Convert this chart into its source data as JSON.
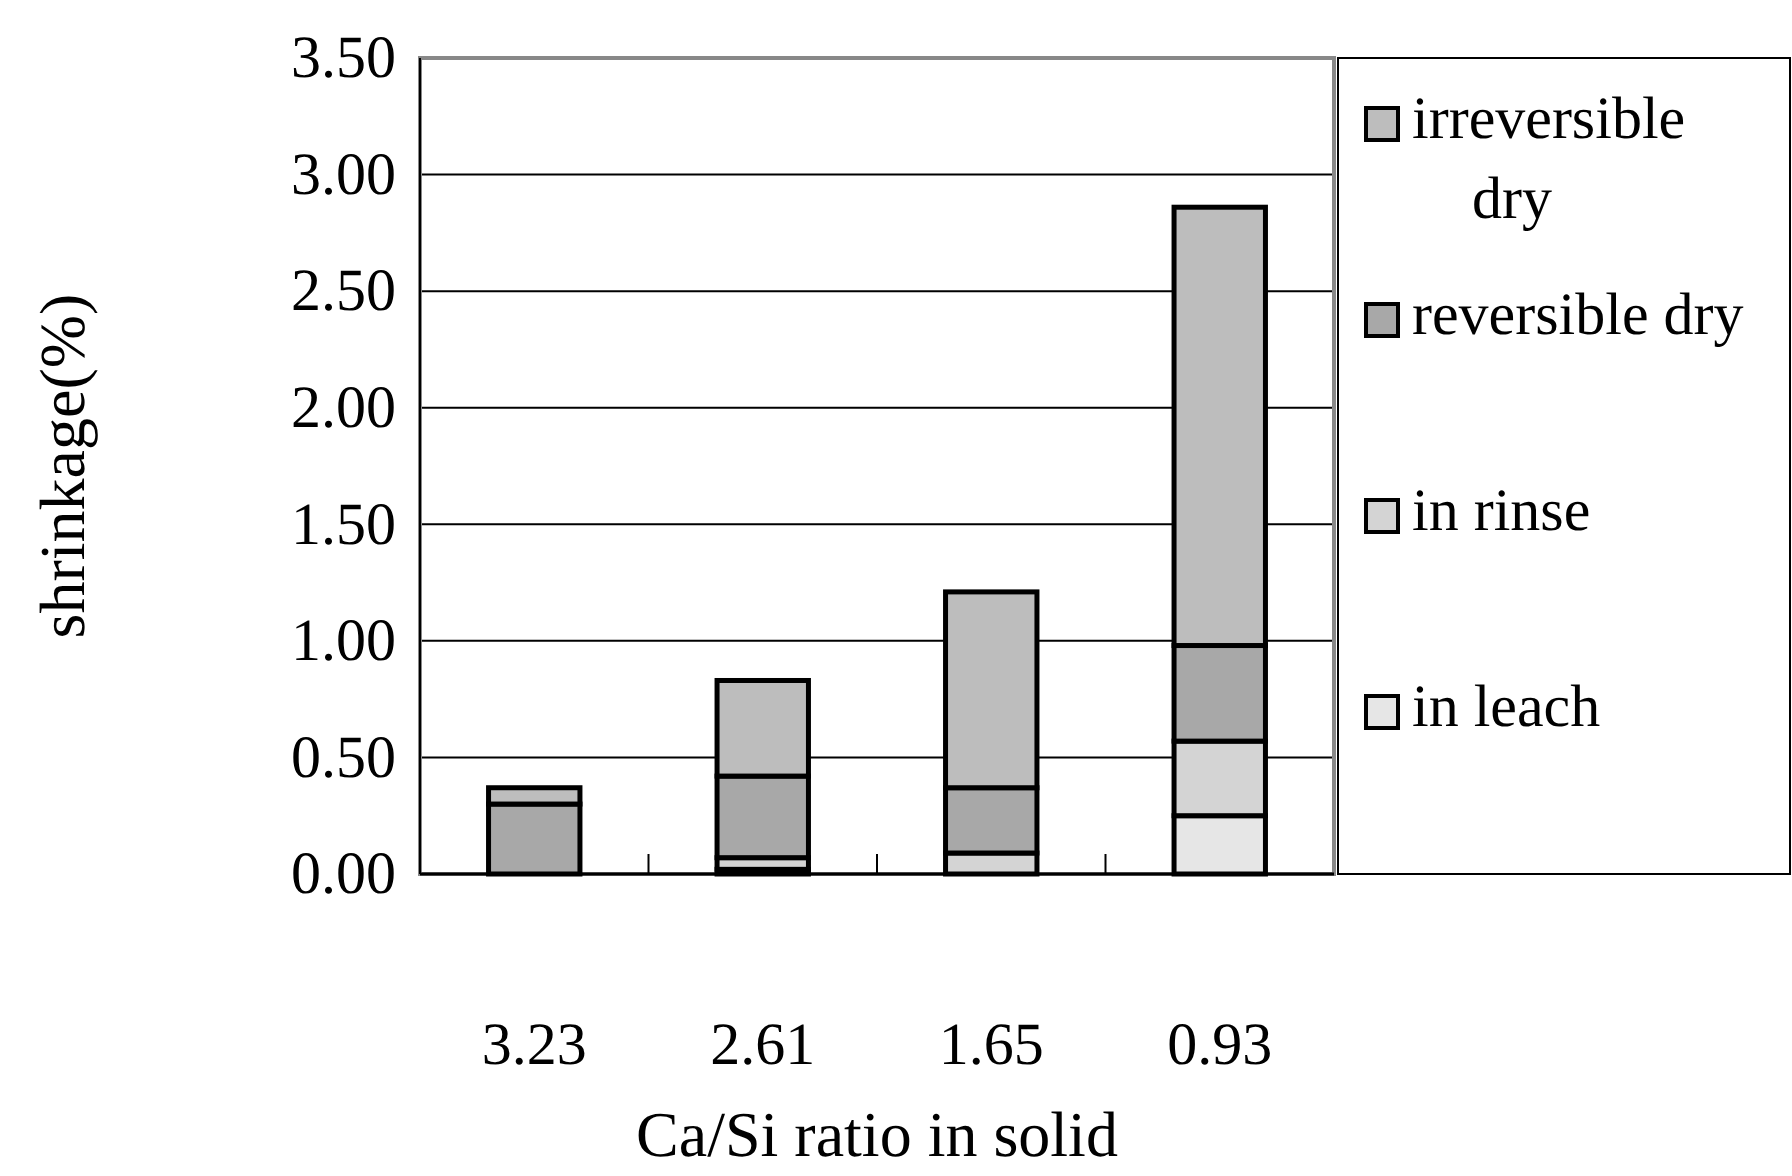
{
  "chart_data": {
    "type": "bar",
    "stacked": true,
    "xlabel": "Ca/Si ratio in solid",
    "ylabel": "shrinkage(%)",
    "categories": [
      "3.23",
      "2.61",
      "1.65",
      "0.93"
    ],
    "series": [
      {
        "name": "in leach",
        "color": "#e6e6e6",
        "values": [
          0,
          0.02,
          0,
          0.25
        ]
      },
      {
        "name": "in rinse",
        "color": "#d4d4d4",
        "values": [
          0,
          0.05,
          0.09,
          0.32
        ]
      },
      {
        "name": "reversible dry",
        "color": "#a8a8a8",
        "values": [
          0.3,
          0.35,
          0.28,
          0.41
        ]
      },
      {
        "name": "irreversible dry",
        "color": "#bdbdbd",
        "values": [
          0.07,
          0.41,
          0.84,
          1.88
        ]
      }
    ],
    "ylim": [
      0,
      3.5
    ],
    "yticks": [
      {
        "value": 0,
        "label": "0.00"
      },
      {
        "value": 0.5,
        "label": "0.50"
      },
      {
        "value": 1,
        "label": "1.00"
      },
      {
        "value": 1.5,
        "label": "1.50"
      },
      {
        "value": 2,
        "label": "2.00"
      },
      {
        "value": 2.5,
        "label": "2.50"
      },
      {
        "value": 3,
        "label": "3.00"
      },
      {
        "value": 3.5,
        "label": "3.50"
      }
    ],
    "grid": "y",
    "legend": "right"
  }
}
